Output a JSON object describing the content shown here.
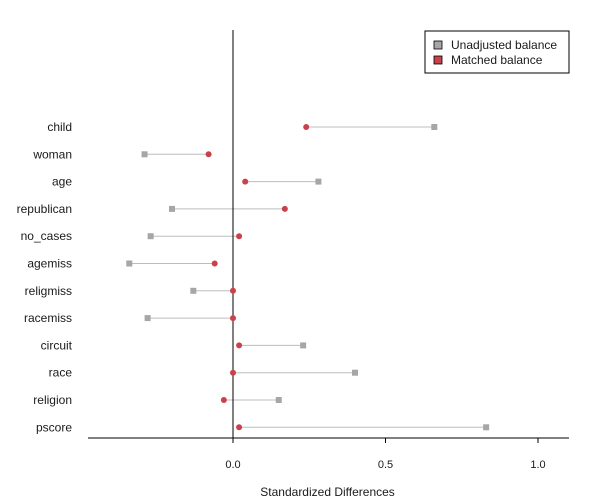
{
  "chart_data": {
    "type": "scatter",
    "xlabel": "Standardized Differences",
    "ylabel": "",
    "xlim": [
      -0.48,
      1.1
    ],
    "x_ticks": [
      "0.0",
      "0.5",
      "1.0"
    ],
    "x_tick_values": [
      0.0,
      0.5,
      1.0
    ],
    "reference_line_x": 0,
    "categories": [
      "child",
      "woman",
      "age",
      "republican",
      "no_cases",
      "agemiss",
      "religmiss",
      "racemiss",
      "circuit",
      "race",
      "religion",
      "pscore"
    ],
    "series": [
      {
        "name": "Unadjusted balance",
        "marker": "square",
        "color": "#a6a6a6",
        "values": [
          0.66,
          -0.29,
          0.28,
          -0.2,
          -0.27,
          -0.34,
          -0.13,
          -0.28,
          0.23,
          0.4,
          0.15,
          0.83
        ]
      },
      {
        "name": "Matched balance",
        "marker": "circle",
        "color": "#c8414b",
        "values": [
          0.24,
          -0.08,
          0.04,
          0.17,
          0.02,
          -0.06,
          0.0,
          0.0,
          0.02,
          0.0,
          -0.03,
          0.02
        ]
      }
    ],
    "legend_position": "top-right",
    "grid": false
  }
}
